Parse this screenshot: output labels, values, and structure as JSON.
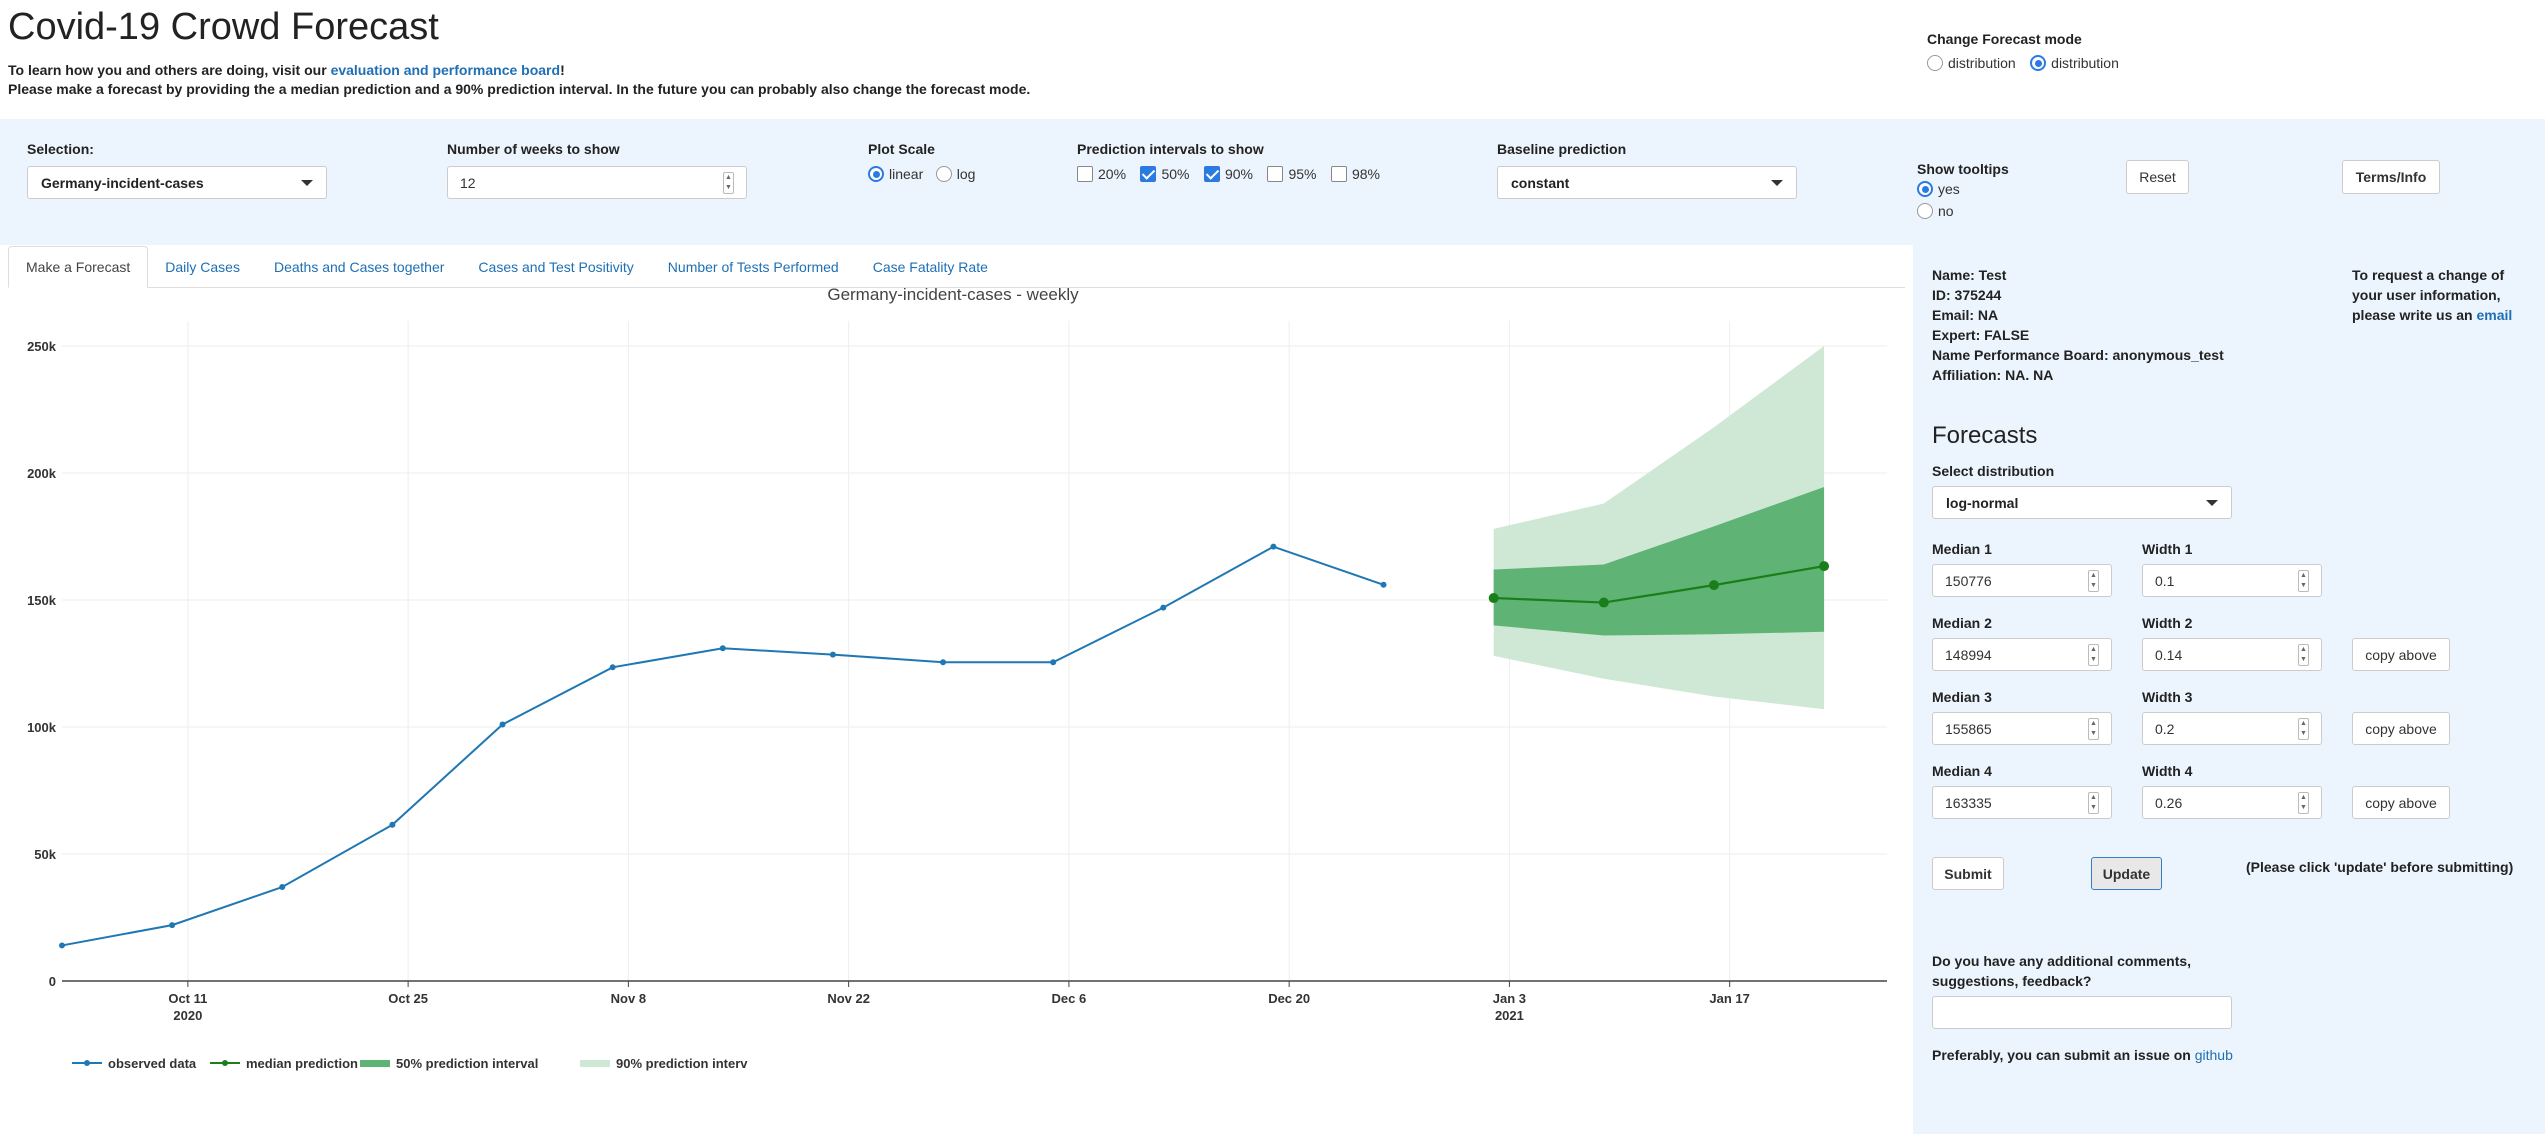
{
  "header": {
    "title": "Covid-19 Crowd Forecast",
    "intro_prefix": "To learn how you and others are doing, visit our",
    "intro_link": "evaluation and performance board",
    "intro_suffix": "!",
    "intro_line2": "Please make a forecast by providing the a median prediction and a 90% prediction interval. In the future you can probably also change the forecast mode."
  },
  "forecast_mode": {
    "label": "Change Forecast mode",
    "options": [
      "distribution",
      "distribution"
    ],
    "selected_index": 1
  },
  "controls": {
    "selection_label": "Selection:",
    "selection_value": "Germany-incident-cases",
    "weeks_label": "Number of weeks to show",
    "weeks_value": "12",
    "scale_label": "Plot Scale",
    "scale_options": [
      "linear",
      "log"
    ],
    "scale_selected": "linear",
    "intervals_label": "Prediction intervals to show",
    "intervals": [
      {
        "label": "20%",
        "checked": false
      },
      {
        "label": "50%",
        "checked": true
      },
      {
        "label": "90%",
        "checked": true
      },
      {
        "label": "95%",
        "checked": false
      },
      {
        "label": "98%",
        "checked": false
      }
    ],
    "baseline_label": "Baseline prediction",
    "baseline_value": "constant",
    "tooltips_label": "Show tooltips",
    "tooltip_options": [
      "yes",
      "no"
    ],
    "tooltip_selected": "yes",
    "reset_label": "Reset",
    "terms_label": "Terms/Info"
  },
  "tabs": [
    "Make a Forecast",
    "Daily Cases",
    "Deaths and Cases together",
    "Cases and Test Positivity",
    "Number of Tests Performed",
    "Case Fatality Rate"
  ],
  "user": {
    "name": "Name: Test",
    "id": "ID: 375244",
    "email": "Email: NA",
    "expert": "Expert: FALSE",
    "board_name": "Name Performance Board: anonymous_test",
    "affiliation": "Affiliation: NA. NA",
    "change_note_1": "To request a change of",
    "change_note_2": "your user information,",
    "change_note_3": "please write us an",
    "change_link": "email"
  },
  "forecasts": {
    "heading": "Forecasts",
    "distribution_label": "Select distribution",
    "distribution_value": "log-normal",
    "rows": [
      {
        "median_label": "Median 1",
        "median": "150776",
        "width_label": "Width 1",
        "width": "0.1",
        "copy": ""
      },
      {
        "median_label": "Median 2",
        "median": "148994",
        "width_label": "Width 2",
        "width": "0.14",
        "copy": "copy above"
      },
      {
        "median_label": "Median 3",
        "median": "155865",
        "width_label": "Width 3",
        "width": "0.2",
        "copy": "copy above"
      },
      {
        "median_label": "Median 4",
        "median": "163335",
        "width_label": "Width 4",
        "width": "0.26",
        "copy": "copy above"
      }
    ],
    "submit_label": "Submit",
    "update_label": "Update",
    "update_note": "(Please click 'update' before submitting)",
    "comments_label_1": "Do you have any additional comments,",
    "comments_label_2": "suggestions, feedback?",
    "comments_value": "",
    "issue_text": "Preferably, you can submit an issue on",
    "issue_link": "github"
  },
  "chart_data": {
    "type": "line",
    "title": "Germany-incident-cases - weekly",
    "y_ticks": [
      0,
      50000,
      100000,
      150000,
      200000,
      250000
    ],
    "y_tick_labels": [
      "0",
      "50k",
      "100k",
      "150k",
      "200k",
      "250k"
    ],
    "ylim": [
      0,
      250000
    ],
    "x_ticks": [
      {
        "date": "2020-10-11",
        "label": "Oct 11",
        "label2": "2020"
      },
      {
        "date": "2020-10-25",
        "label": "Oct 25",
        "label2": ""
      },
      {
        "date": "2020-11-08",
        "label": "Nov 8",
        "label2": ""
      },
      {
        "date": "2020-11-22",
        "label": "Nov 22",
        "label2": ""
      },
      {
        "date": "2020-12-06",
        "label": "Dec 6",
        "label2": ""
      },
      {
        "date": "2020-12-20",
        "label": "Dec 20",
        "label2": ""
      },
      {
        "date": "2021-01-03",
        "label": "Jan 3",
        "label2": "2021"
      },
      {
        "date": "2021-01-17",
        "label": "Jan 17",
        "label2": ""
      }
    ],
    "xlim": [
      "2020-10-03",
      "2021-01-27"
    ],
    "series": [
      {
        "name": "observed data",
        "color": "#1f77b4",
        "x": [
          "2020-10-03",
          "2020-10-10",
          "2020-10-17",
          "2020-10-24",
          "2020-10-31",
          "2020-11-07",
          "2020-11-14",
          "2020-11-21",
          "2020-11-28",
          "2020-12-05",
          "2020-12-12",
          "2020-12-19",
          "2020-12-26"
        ],
        "y": [
          14000,
          22000,
          37000,
          61500,
          101000,
          123500,
          131000,
          128500,
          125500,
          125500,
          147000,
          171000,
          156000
        ]
      },
      {
        "name": "median prediction",
        "color": "#1a7f1a",
        "x": [
          "2021-01-02",
          "2021-01-09",
          "2021-01-16",
          "2021-01-23"
        ],
        "y": [
          150776,
          148994,
          155865,
          163335
        ]
      }
    ],
    "bands": [
      {
        "name": "90% prediction interval",
        "color": "#cfe8d6",
        "x": [
          "2021-01-02",
          "2021-01-09",
          "2021-01-16",
          "2021-01-23"
        ],
        "lower": [
          128000,
          119000,
          112000,
          107000
        ],
        "upper": [
          178000,
          188000,
          218000,
          250000
        ]
      },
      {
        "name": "50% prediction interval",
        "color": "#5fb374",
        "x": [
          "2021-01-02",
          "2021-01-09",
          "2021-01-16",
          "2021-01-23"
        ],
        "lower": [
          140000,
          136000,
          136500,
          137500
        ],
        "upper": [
          162000,
          164000,
          179000,
          194500
        ]
      }
    ],
    "legend": [
      "observed data",
      "median prediction",
      "50% prediction interval",
      "90% prediction interv"
    ]
  }
}
